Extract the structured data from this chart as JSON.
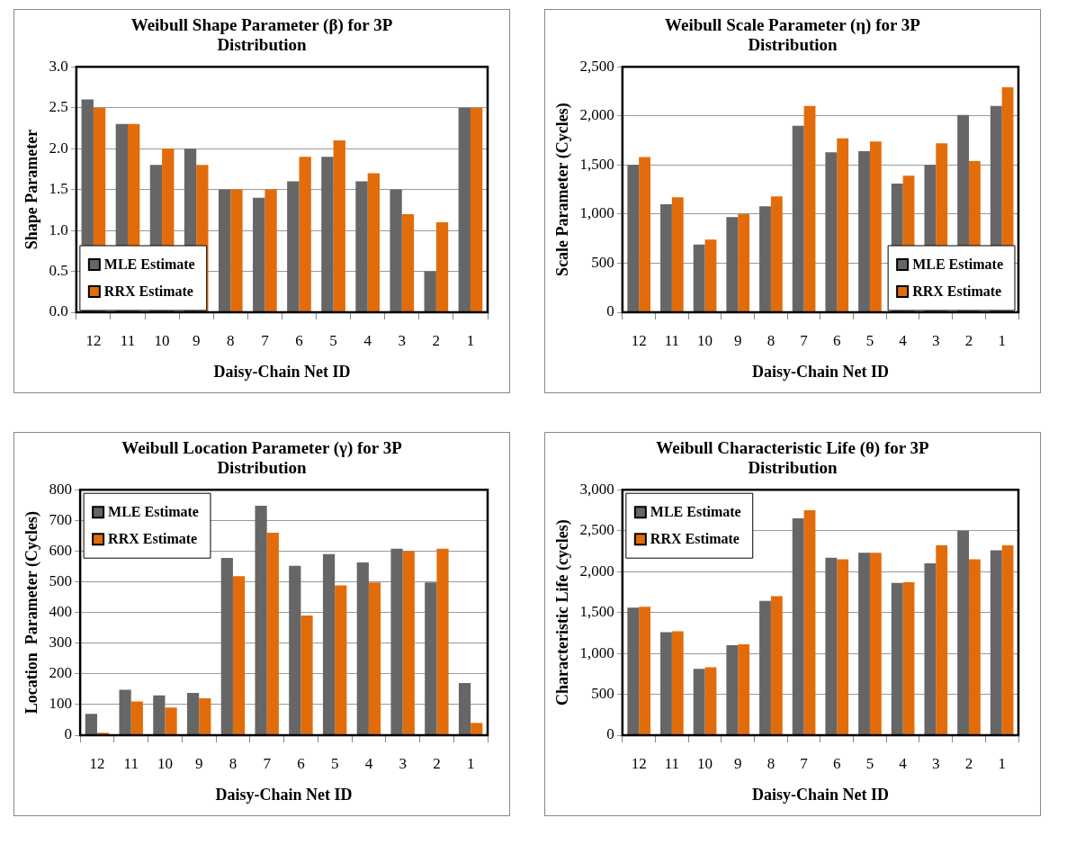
{
  "chart_data": [
    {
      "type": "bar",
      "title": "Weibull Shape Parameter (β) for 3P Distribution",
      "xlabel": "Daisy-Chain Net ID",
      "ylabel": "Shape Parameter",
      "categories": [
        "12",
        "11",
        "10",
        "9",
        "8",
        "7",
        "6",
        "5",
        "4",
        "3",
        "2",
        "1"
      ],
      "series": [
        {
          "name": "MLE Estimate",
          "color": "#666666",
          "values": [
            2.6,
            2.3,
            1.8,
            2.0,
            1.5,
            1.4,
            1.6,
            1.9,
            1.6,
            1.5,
            0.5,
            2.5
          ]
        },
        {
          "name": "RRX Estimate",
          "color": "#e36c0a",
          "values": [
            2.5,
            2.3,
            2.0,
            1.8,
            1.5,
            1.5,
            1.9,
            2.1,
            1.7,
            1.2,
            1.1,
            2.5
          ]
        }
      ],
      "ylim": [
        0,
        3
      ],
      "yticks": [
        {
          "value": 0,
          "label": "0.0"
        },
        0.5,
        {
          "value": 1,
          "label": "1.0"
        },
        1.5,
        {
          "value": 2,
          "label": "2.0"
        },
        2.5,
        {
          "value": 3,
          "label": "3.0"
        }
      ],
      "grid": "y",
      "legend": "bottom left"
    },
    {
      "type": "bar",
      "title": "Weibull Scale Parameter (η) for 3P Distribution",
      "xlabel": "Daisy-Chain Net ID",
      "ylabel": "Scale Parameter (Cycles)",
      "categories": [
        "12",
        "11",
        "10",
        "9",
        "8",
        "7",
        "6",
        "5",
        "4",
        "3",
        "2",
        "1"
      ],
      "series": [
        {
          "name": "MLE Estimate",
          "color": "#666666",
          "values": [
            1500,
            1100,
            690,
            970,
            1080,
            1900,
            1630,
            1640,
            1310,
            1500,
            2010,
            2100
          ]
        },
        {
          "name": "RRX Estimate",
          "color": "#e36c0a",
          "values": [
            1580,
            1170,
            740,
            1000,
            1180,
            2100,
            1770,
            1740,
            1390,
            1720,
            1540,
            2290
          ]
        }
      ],
      "ylim": [
        0,
        2500
      ],
      "yticks": [
        0,
        500,
        {
          "value": 1000,
          "label": "1,000"
        },
        {
          "value": 1500,
          "label": "1,500"
        },
        {
          "value": 2000,
          "label": "2,000"
        },
        {
          "value": 2500,
          "label": "2,500"
        }
      ],
      "grid": "y",
      "legend": "bottom right"
    },
    {
      "type": "bar",
      "title": "Weibull Location Parameter (γ) for 3P Distribution",
      "xlabel": "Daisy-Chain Net ID",
      "ylabel": "Location  Parameter (Cycles)",
      "categories": [
        "12",
        "11",
        "10",
        "9",
        "8",
        "7",
        "6",
        "5",
        "4",
        "3",
        "2",
        "1"
      ],
      "series": [
        {
          "name": "MLE Estimate",
          "color": "#666666",
          "values": [
            70,
            148,
            130,
            138,
            578,
            748,
            552,
            590,
            563,
            608,
            498,
            170
          ]
        },
        {
          "name": "RRX Estimate",
          "color": "#e36c0a",
          "values": [
            8,
            110,
            90,
            120,
            518,
            660,
            390,
            488,
            498,
            600,
            608,
            40
          ]
        }
      ],
      "ylim": [
        0,
        800
      ],
      "yticks": [
        0,
        100,
        200,
        300,
        400,
        500,
        600,
        700,
        800
      ],
      "grid": "y",
      "legend": "top left"
    },
    {
      "type": "bar",
      "title": "Weibull Characteristic Life (θ) for 3P Distribution",
      "xlabel": "Daisy-Chain Net ID",
      "ylabel": "Characteristic Life (cycles)",
      "categories": [
        "12",
        "11",
        "10",
        "9",
        "8",
        "7",
        "6",
        "5",
        "4",
        "3",
        "2",
        "1"
      ],
      "series": [
        {
          "name": "MLE Estimate",
          "color": "#666666",
          "values": [
            1560,
            1260,
            810,
            1100,
            1640,
            2650,
            2170,
            2230,
            1860,
            2100,
            2500,
            2260
          ]
        },
        {
          "name": "RRX Estimate",
          "color": "#e36c0a",
          "values": [
            1570,
            1270,
            830,
            1110,
            1700,
            2750,
            2150,
            2230,
            1870,
            2320,
            2150,
            2320
          ]
        }
      ],
      "ylim": [
        0,
        3000
      ],
      "yticks": [
        0,
        500,
        {
          "value": 1000,
          "label": "1,000"
        },
        {
          "value": 1500,
          "label": "1,500"
        },
        {
          "value": 2000,
          "label": "2,000"
        },
        {
          "value": 2500,
          "label": "2,500"
        },
        {
          "value": 3000,
          "label": "3,000"
        }
      ],
      "grid": "y",
      "legend": "top left"
    }
  ]
}
